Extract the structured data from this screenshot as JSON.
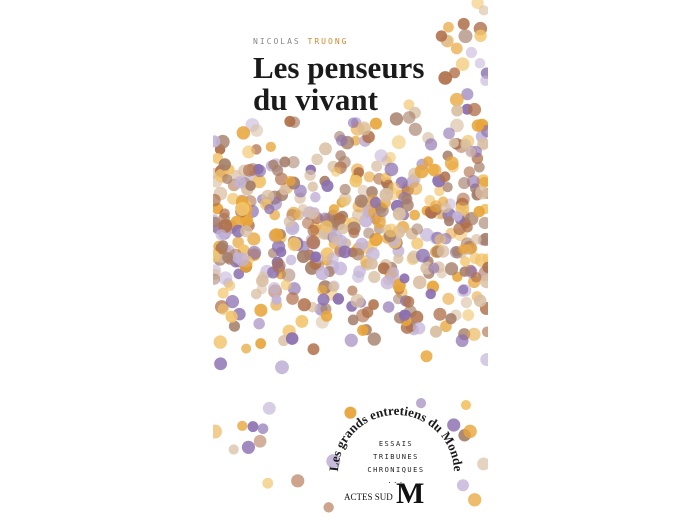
{
  "cover": {
    "author": {
      "first": "NICOLAS",
      "last": "TRUONG"
    },
    "title": [
      "Les penseurs",
      "du vivant"
    ],
    "series": "Les grands entretiens du Monde",
    "genres": [
      "ESSAIS",
      "TRIBUNES",
      "CHRONIQUES",
      "..."
    ],
    "publisher": "ACTES SUD",
    "logo": "M"
  }
}
